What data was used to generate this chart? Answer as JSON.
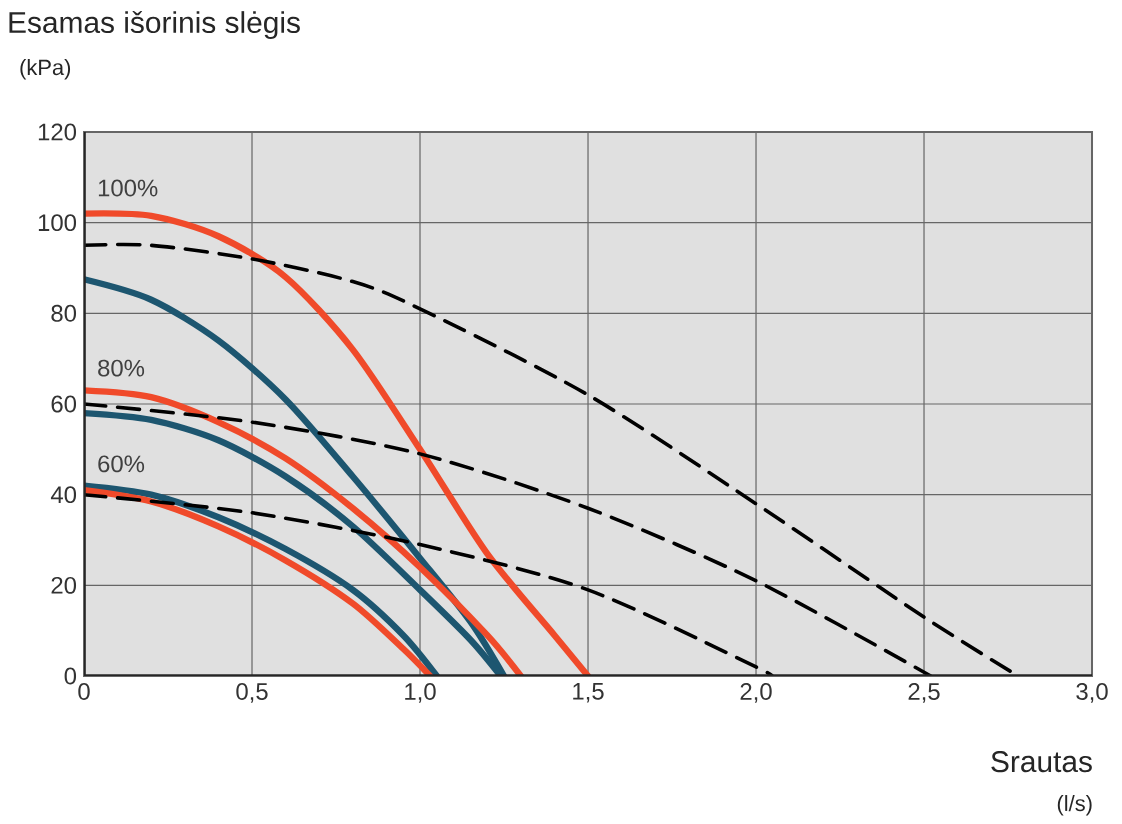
{
  "chart_data": {
    "type": "line",
    "ylabel": "Esamas išorinis slėgis",
    "xlabel": "Srautas",
    "annotations": [
      "(kPa)",
      "(l/s)",
      "100%",
      "80%",
      "60%"
    ],
    "xlim": [
      0,
      3
    ],
    "ylim": [
      0,
      120
    ],
    "xticks": [
      0,
      {
        "value": 0.5,
        "label": "0,5"
      },
      {
        "value": 1,
        "label": "1,0"
      },
      {
        "value": 1.5,
        "label": "1,5"
      },
      {
        "value": 2,
        "label": "2,0"
      },
      {
        "value": 2.5,
        "label": "2,5"
      },
      {
        "value": 3,
        "label": "3,0"
      }
    ],
    "yticks": [
      0,
      20,
      40,
      60,
      80,
      100,
      120
    ],
    "grid": true,
    "series": [
      {
        "color": "#1d5670",
        "line_style": "solid",
        "x": [
          0,
          0.2,
          0.4,
          0.6,
          0.8,
          1.0,
          1.15,
          1.25
        ],
        "values": [
          87.5,
          83,
          74,
          61,
          44,
          26,
          12,
          0
        ]
      },
      {
        "color": "#1d5670",
        "line_style": "solid",
        "x": [
          0,
          0.2,
          0.4,
          0.6,
          0.8,
          1.0,
          1.15,
          1.24
        ],
        "values": [
          58,
          56.5,
          52,
          44,
          33,
          19,
          8,
          0
        ]
      },
      {
        "color": "#1d5670",
        "line_style": "solid",
        "x": [
          0,
          0.2,
          0.4,
          0.6,
          0.8,
          0.95,
          1.05
        ],
        "values": [
          42,
          40,
          35,
          28,
          19,
          9,
          0
        ]
      },
      {
        "color": "#f04a2a",
        "line_style": "solid",
        "x": [
          0,
          0.2,
          0.4,
          0.6,
          0.8,
          1.0,
          1.2,
          1.4,
          1.5
        ],
        "values": [
          102,
          101.5,
          97,
          88,
          72,
          50,
          27,
          9,
          0
        ]
      },
      {
        "color": "#f04a2a",
        "line_style": "solid",
        "x": [
          0,
          0.2,
          0.4,
          0.6,
          0.8,
          1.0,
          1.2,
          1.3
        ],
        "values": [
          63,
          61.5,
          56,
          48,
          37,
          24,
          9,
          0
        ]
      },
      {
        "color": "#f04a2a",
        "line_style": "solid",
        "x": [
          0,
          0.2,
          0.4,
          0.6,
          0.8,
          0.95,
          1.03
        ],
        "values": [
          41,
          38.5,
          33,
          25.5,
          16,
          6,
          0
        ]
      },
      {
        "color": "#000000",
        "line_style": "dashed",
        "x": [
          0,
          0.2,
          0.5,
          0.8,
          1.0,
          1.5,
          2.0,
          2.5,
          2.78
        ],
        "values": [
          95,
          95,
          92,
          87,
          81,
          62,
          38,
          13,
          0
        ]
      },
      {
        "color": "#000000",
        "line_style": "dashed",
        "x": [
          0,
          0.5,
          1.0,
          1.5,
          2.0,
          2.52
        ],
        "values": [
          60,
          56,
          49,
          37,
          21,
          0
        ]
      },
      {
        "color": "#000000",
        "line_style": "dashed",
        "x": [
          0,
          0.5,
          1.0,
          1.5,
          2.0,
          2.04
        ],
        "values": [
          40,
          36,
          29,
          19,
          2,
          0
        ]
      }
    ]
  }
}
